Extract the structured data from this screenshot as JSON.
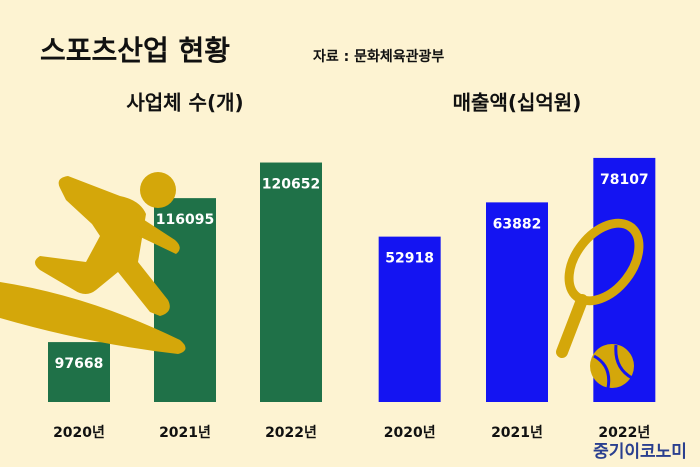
{
  "title": "스포츠산업 현황",
  "source": "자료 : 문화체육관광부",
  "watermark": "중기이코노미",
  "chart_data": [
    {
      "type": "bar",
      "title": "사업체 수(개)",
      "categories": [
        "2020년",
        "2021년",
        "2022년"
      ],
      "values": [
        97668,
        116095,
        120652
      ],
      "color": "#1f7148",
      "ylim": [
        90000,
        122000
      ]
    },
    {
      "type": "bar",
      "title": "매출액(십억원)",
      "categories": [
        "2020년",
        "2021년",
        "2022년"
      ],
      "values": [
        52918,
        63882,
        78107
      ],
      "color": "#1414f2",
      "ylim": [
        0,
        80000
      ]
    }
  ]
}
